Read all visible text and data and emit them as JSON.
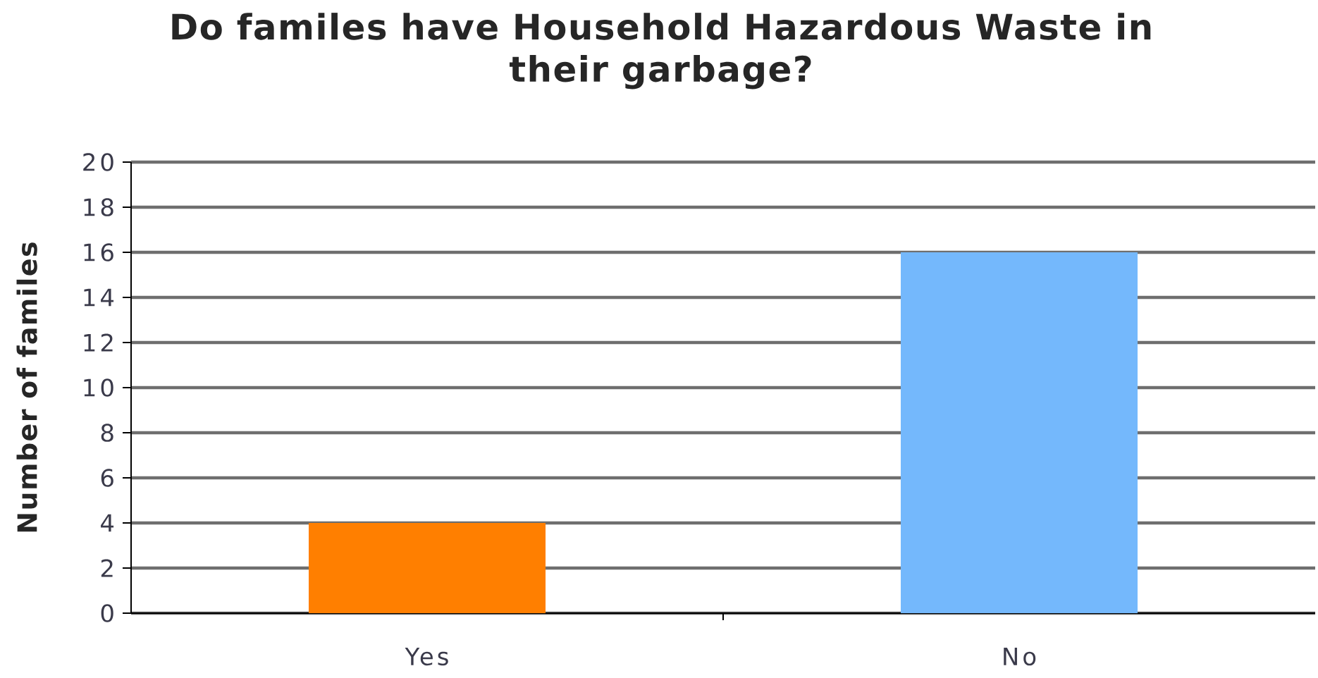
{
  "chart_data": {
    "type": "bar",
    "title": "Do familes have Household Hazardous Waste in their garbage?",
    "ylabel": "Number of familes",
    "categories": [
      "Yes",
      "No"
    ],
    "values": [
      4,
      16
    ],
    "colors": [
      "#ff7f00",
      "#74b8fc"
    ],
    "ylim": [
      0,
      20
    ],
    "yticks": [
      0,
      2,
      4,
      6,
      8,
      10,
      12,
      14,
      16,
      18,
      20
    ],
    "grid": "y"
  }
}
